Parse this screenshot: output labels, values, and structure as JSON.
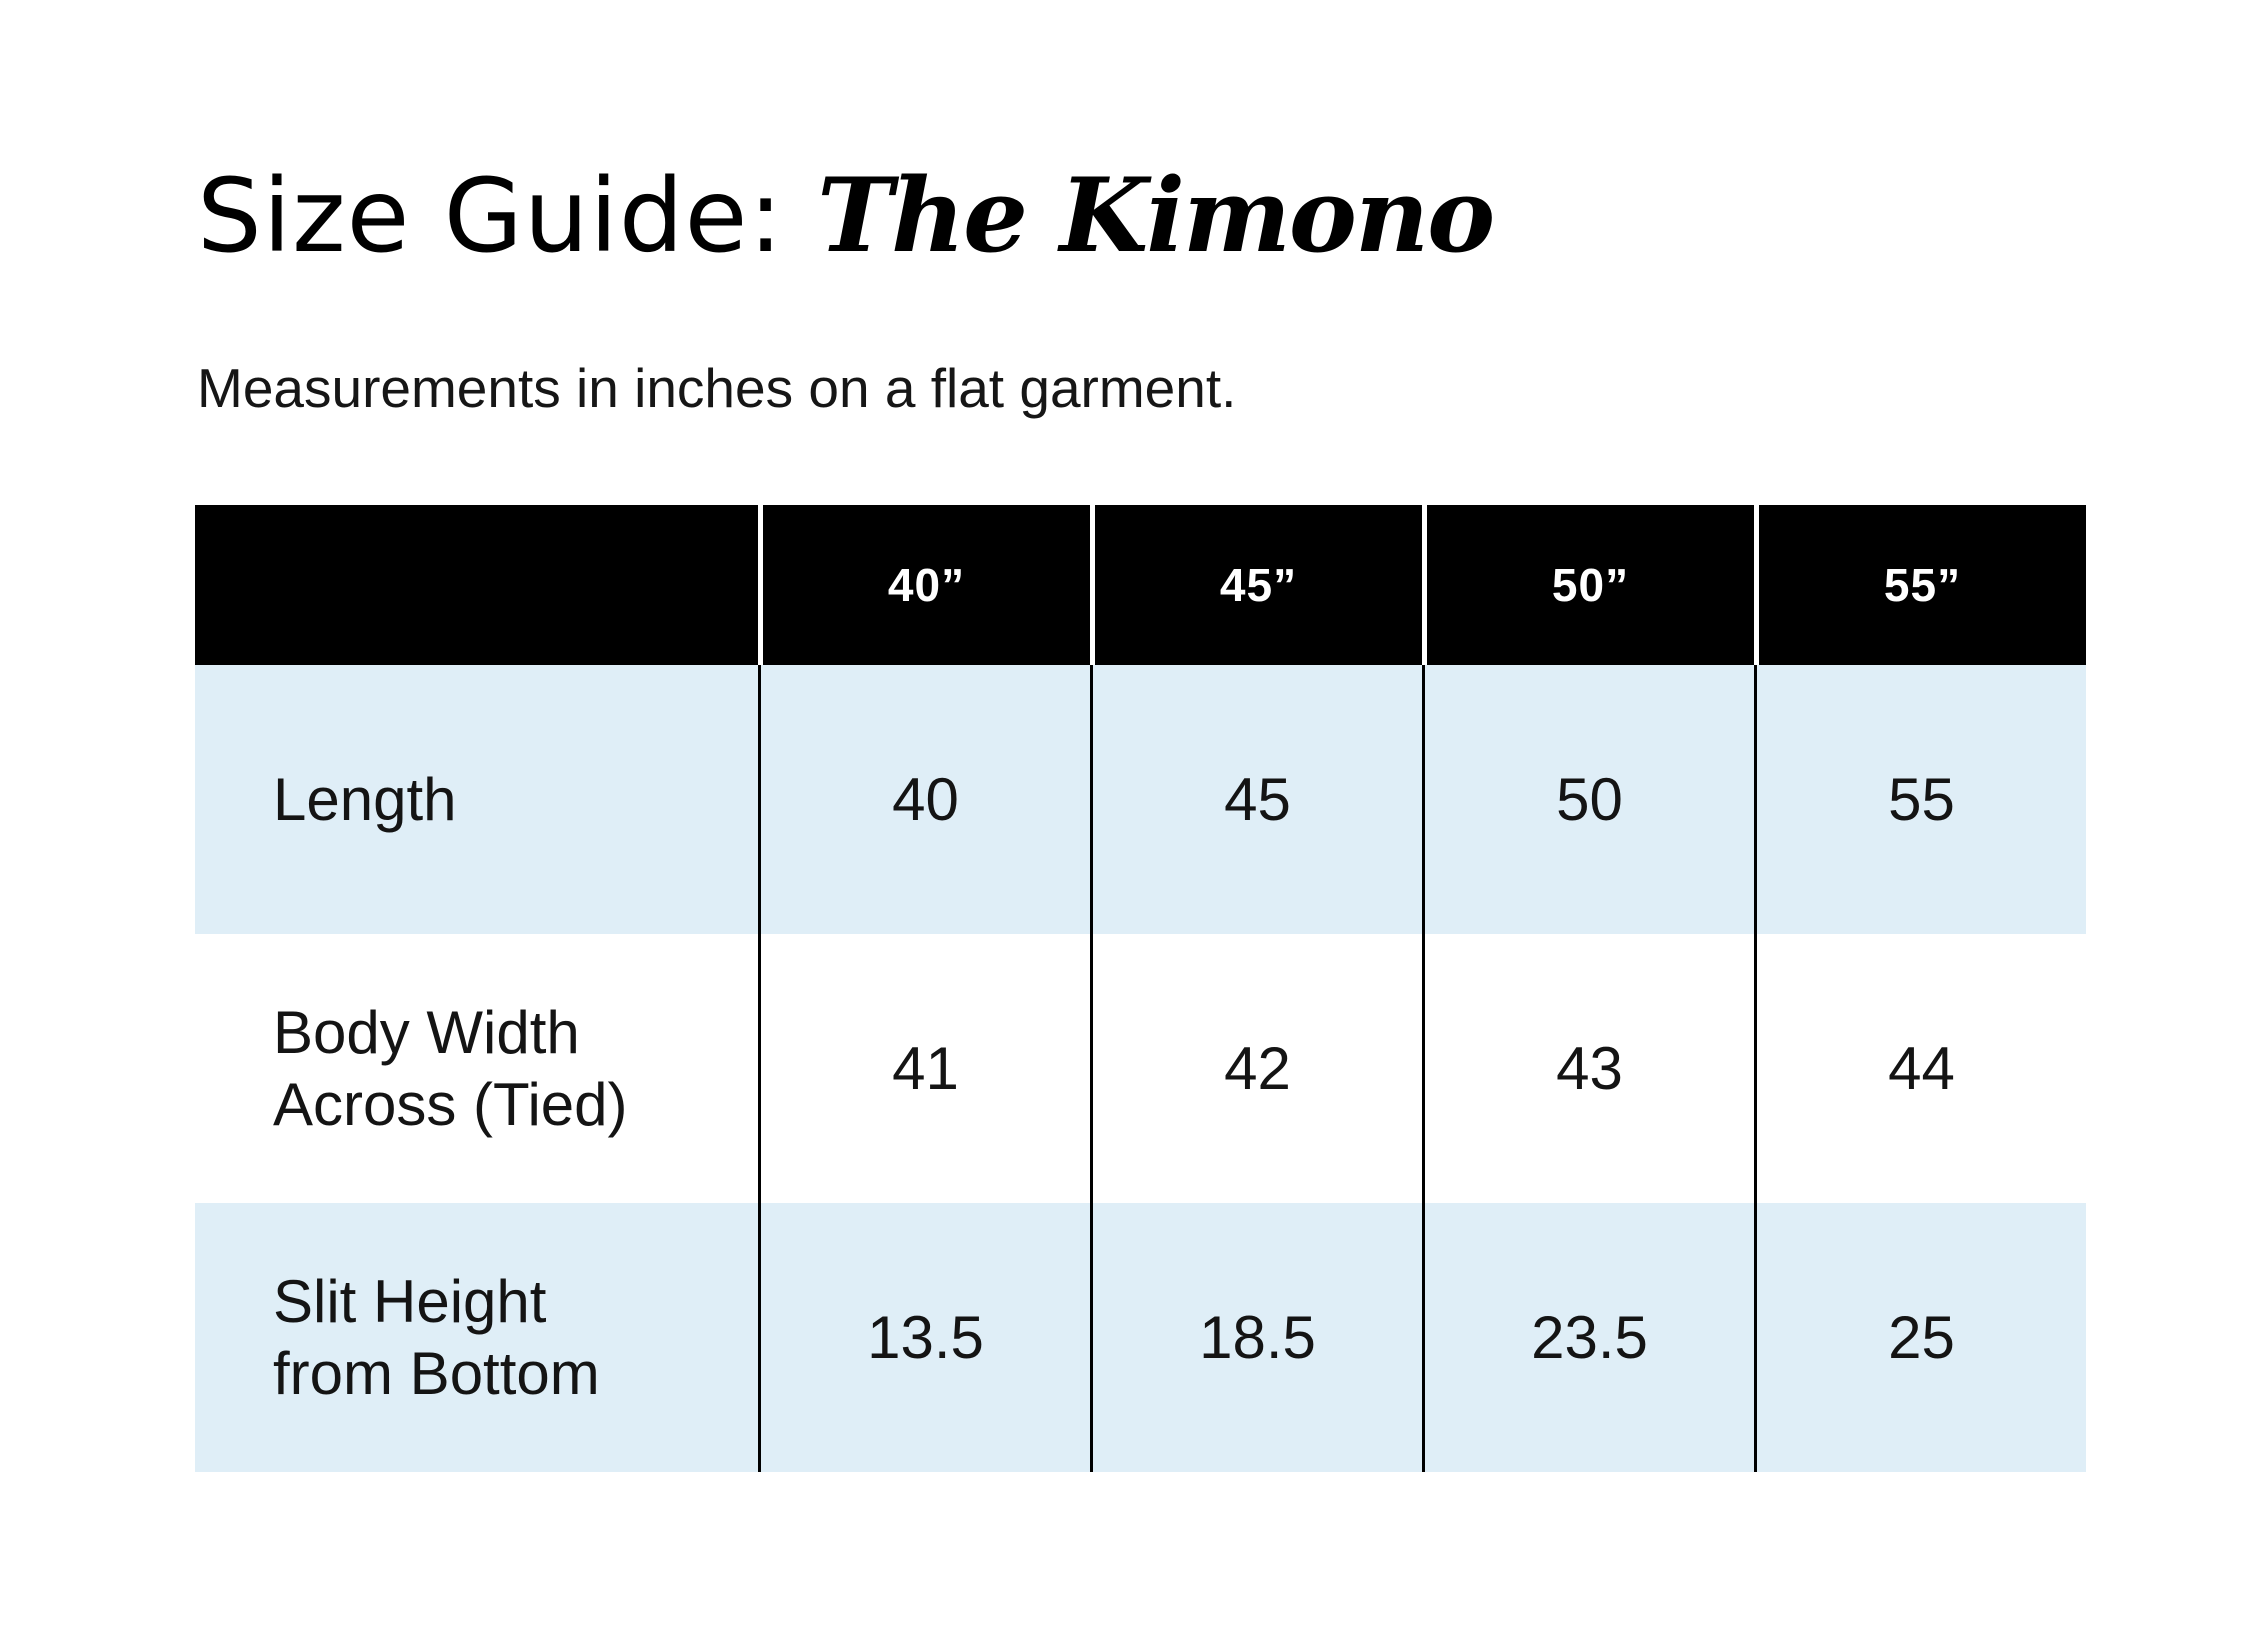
{
  "page": {
    "title": {
      "prefix": "Size Guide: ",
      "product": "The Kimono"
    },
    "subtitle": "Measurements in inches on a flat garment."
  },
  "size_table": {
    "column_headers": [
      "",
      "40”",
      "45”",
      "50”",
      "55”"
    ],
    "rows": [
      {
        "label": "Length",
        "values": [
          "40",
          "45",
          "50",
          "55"
        ]
      },
      {
        "label": "Body Width Across (Tied)",
        "values": [
          "41",
          "42",
          "43",
          "44"
        ]
      },
      {
        "label": "Slit Height from Bottom",
        "values": [
          "13.5",
          "18.5",
          "23.5",
          "25"
        ]
      }
    ]
  },
  "colors": {
    "header_bg": "#000000",
    "header_text": "#ffffff",
    "stripe_row_bg": "#dfeef7",
    "plain_row_bg": "#ffffff",
    "body_text": "#141414"
  }
}
